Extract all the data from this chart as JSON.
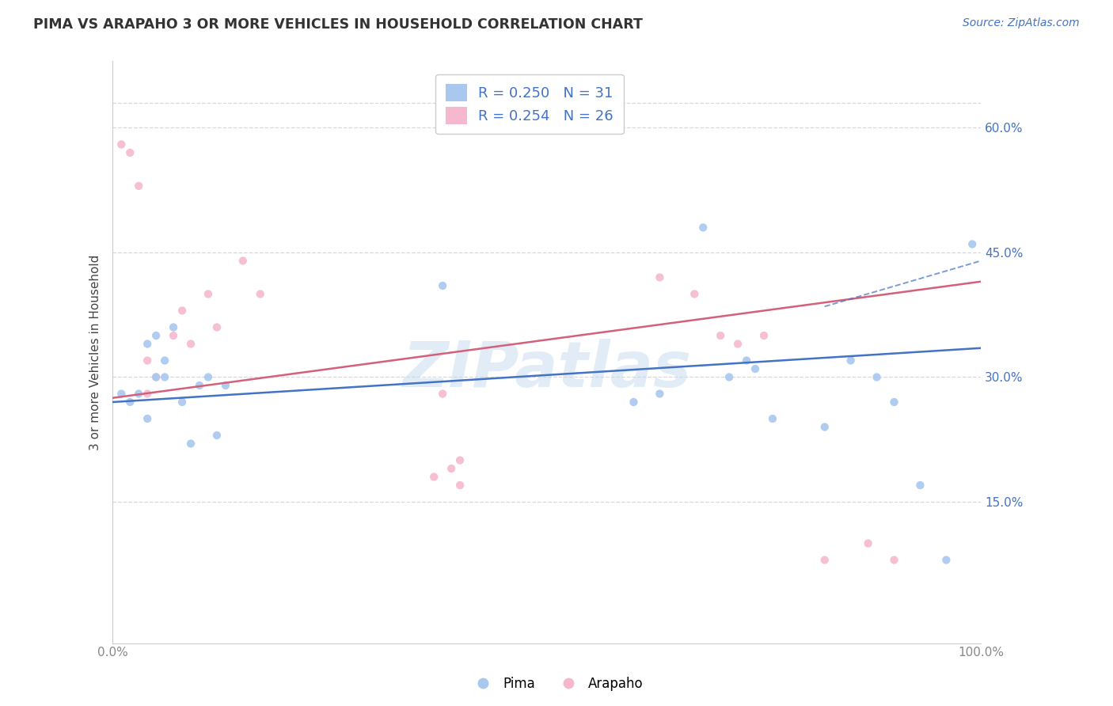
{
  "title": "PIMA VS ARAPAHO 3 OR MORE VEHICLES IN HOUSEHOLD CORRELATION CHART",
  "source_text": "Source: ZipAtlas.com",
  "ylabel": "3 or more Vehicles in Household",
  "xlim": [
    0.0,
    1.0
  ],
  "ylim": [
    -0.02,
    0.68
  ],
  "xticks": [
    0.0,
    0.2,
    0.4,
    0.6,
    0.8,
    1.0
  ],
  "xticklabels": [
    "0.0%",
    "",
    "",
    "",
    "",
    "100.0%"
  ],
  "yticks": [
    0.15,
    0.3,
    0.45,
    0.6
  ],
  "yticklabels": [
    "15.0%",
    "30.0%",
    "45.0%",
    "60.0%"
  ],
  "pima_color": "#a8c8f0",
  "arapaho_color": "#f5b8cf",
  "pima_line_color": "#4472c4",
  "arapaho_line_color": "#d4607a",
  "legend_r_color": "#4472c4",
  "background_color": "#ffffff",
  "grid_color": "#d8d8d8",
  "watermark": "ZIPatlas",
  "legend_pima_r": "0.250",
  "legend_pima_n": "31",
  "legend_arapaho_r": "0.254",
  "legend_arapaho_n": "26",
  "pima_scatter_x": [
    0.01,
    0.02,
    0.03,
    0.04,
    0.04,
    0.05,
    0.05,
    0.06,
    0.06,
    0.07,
    0.08,
    0.09,
    0.1,
    0.11,
    0.12,
    0.13,
    0.38,
    0.6,
    0.63,
    0.68,
    0.71,
    0.73,
    0.74,
    0.76,
    0.82,
    0.85,
    0.88,
    0.9,
    0.93,
    0.96,
    0.99
  ],
  "pima_scatter_y": [
    0.28,
    0.27,
    0.28,
    0.34,
    0.25,
    0.35,
    0.3,
    0.32,
    0.3,
    0.36,
    0.27,
    0.22,
    0.29,
    0.3,
    0.23,
    0.29,
    0.41,
    0.27,
    0.28,
    0.48,
    0.3,
    0.32,
    0.31,
    0.25,
    0.24,
    0.32,
    0.3,
    0.27,
    0.17,
    0.08,
    0.46
  ],
  "arapaho_scatter_x": [
    0.01,
    0.02,
    0.03,
    0.04,
    0.04,
    0.05,
    0.07,
    0.08,
    0.09,
    0.11,
    0.12,
    0.15,
    0.17,
    0.38,
    0.4,
    0.63,
    0.67,
    0.7,
    0.72,
    0.75,
    0.82,
    0.37,
    0.39,
    0.4,
    0.87,
    0.9
  ],
  "arapaho_scatter_y": [
    0.58,
    0.57,
    0.53,
    0.28,
    0.32,
    0.3,
    0.35,
    0.38,
    0.34,
    0.4,
    0.36,
    0.44,
    0.4,
    0.28,
    0.2,
    0.42,
    0.4,
    0.35,
    0.34,
    0.35,
    0.08,
    0.18,
    0.19,
    0.17,
    0.1,
    0.08
  ],
  "pima_dot_size": 55,
  "arapaho_dot_size": 55
}
